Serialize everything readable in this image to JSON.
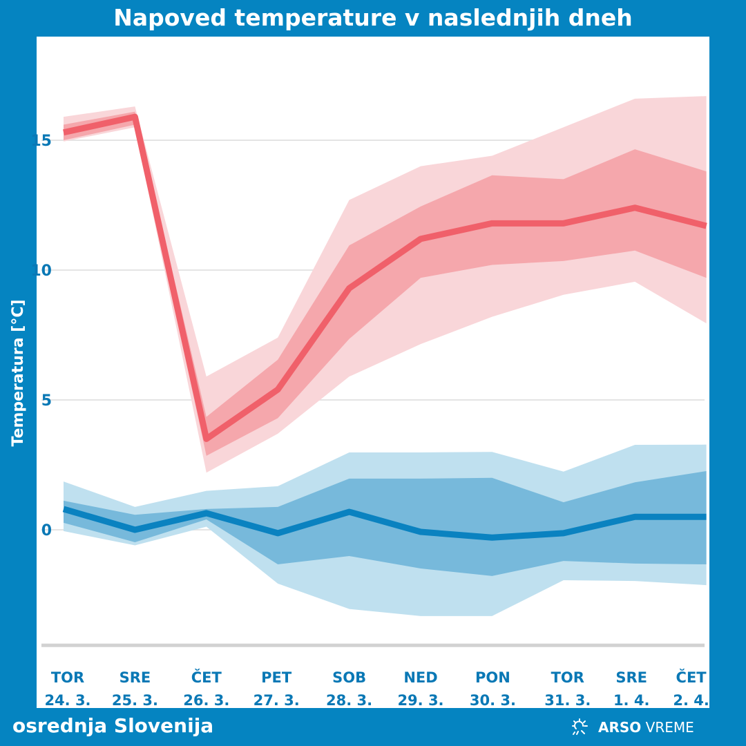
{
  "header": {
    "title": "Napoved temperature v naslednjih dneh"
  },
  "footer": {
    "region": "osrednja Slovenija",
    "brand_bold": "ARSO",
    "brand_light": "VREME",
    "brand_icon": "sun-cloud-icon"
  },
  "chart_data": {
    "type": "line",
    "title": "Napoved temperature v naslednjih dneh",
    "xlabel": "",
    "ylabel": "Temperatura [°C]",
    "ylim": [
      -4.5,
      19
    ],
    "yticks": [
      0,
      5,
      10,
      15
    ],
    "grid": true,
    "categories": [
      {
        "day": "TOR",
        "date": "24. 3."
      },
      {
        "day": "SRE",
        "date": "25. 3."
      },
      {
        "day": "ČET",
        "date": "26. 3."
      },
      {
        "day": "PET",
        "date": "27. 3."
      },
      {
        "day": "SOB",
        "date": "28. 3."
      },
      {
        "day": "NED",
        "date": "29. 3."
      },
      {
        "day": "PON",
        "date": "30. 3."
      },
      {
        "day": "TOR",
        "date": "31. 3."
      },
      {
        "day": "SRE",
        "date": "1. 4."
      },
      {
        "day": "ČET",
        "date": "2. 4."
      }
    ],
    "series": [
      {
        "color": "#f0606a",
        "inner_color": "#f5a7ac",
        "outer_color": "#f9d6d9",
        "values": [
          15.3,
          15.9,
          3.5,
          5.4,
          9.3,
          11.2,
          11.8,
          11.8,
          12.4,
          11.7
        ],
        "inner_upper": [
          15.6,
          16.1,
          4.35,
          6.55,
          10.95,
          12.45,
          13.65,
          13.5,
          14.65,
          13.8
        ],
        "inner_lower": [
          15.0,
          15.6,
          2.85,
          4.3,
          7.35,
          9.7,
          10.2,
          10.35,
          10.75,
          9.7
        ],
        "outer_upper": [
          15.9,
          16.3,
          5.9,
          7.4,
          12.7,
          14.0,
          14.4,
          15.5,
          16.6,
          16.7
        ],
        "outer_lower": [
          14.95,
          15.5,
          2.2,
          3.7,
          5.9,
          7.15,
          8.2,
          9.05,
          9.55,
          7.95
        ]
      },
      {
        "color": "#0a82c0",
        "inner_color": "#77b9db",
        "outer_color": "#bfe0ef",
        "values": [
          0.8,
          0.0,
          0.64,
          -0.13,
          0.69,
          -0.08,
          -0.3,
          -0.13,
          0.5,
          0.5
        ],
        "inner_upper": [
          1.12,
          0.58,
          0.8,
          0.88,
          1.97,
          1.97,
          2.0,
          1.06,
          1.83,
          2.26
        ],
        "inner_lower": [
          0.27,
          -0.48,
          0.4,
          -1.33,
          -1.01,
          -1.49,
          -1.78,
          -1.2,
          -1.3,
          -1.33
        ],
        "outer_upper": [
          1.86,
          0.88,
          1.5,
          1.68,
          2.98,
          2.98,
          3.0,
          2.24,
          3.27,
          3.28
        ],
        "outer_lower": [
          -0.05,
          -0.6,
          0.12,
          -2.07,
          -3.05,
          -3.32,
          -3.32,
          -1.94,
          -1.97,
          -2.13
        ]
      }
    ]
  }
}
